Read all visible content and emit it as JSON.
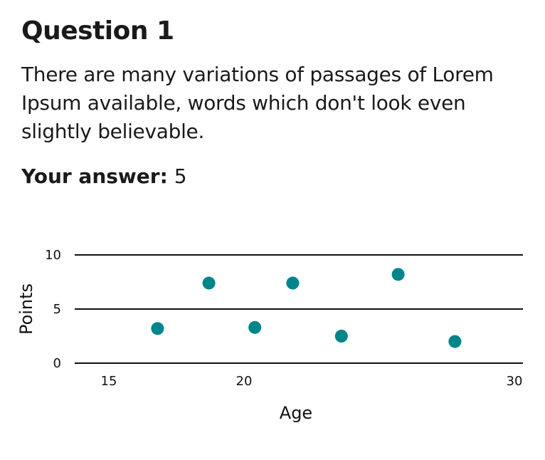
{
  "question": {
    "title": "Question 1",
    "text": "There are many variations of passages of Lorem Ipsum available, words which don't look even slightly believable.",
    "answer_label": "Your answer:",
    "answer_value": "5"
  },
  "chart_data": {
    "type": "scatter",
    "xlabel": "Age",
    "ylabel": "Points",
    "xlim": [
      15,
      30
    ],
    "ylim": [
      0,
      10
    ],
    "xticks": [
      15,
      20,
      30
    ],
    "yticks": [
      0,
      5,
      10
    ],
    "grid": "horizontal",
    "point_color": "#00858a",
    "points": [
      {
        "x": 16.8,
        "y": 3.2
      },
      {
        "x": 18.7,
        "y": 7.4
      },
      {
        "x": 20.4,
        "y": 3.3
      },
      {
        "x": 21.8,
        "y": 7.4
      },
      {
        "x": 23.6,
        "y": 2.5
      },
      {
        "x": 25.7,
        "y": 8.2
      },
      {
        "x": 27.8,
        "y": 2.0
      }
    ]
  }
}
